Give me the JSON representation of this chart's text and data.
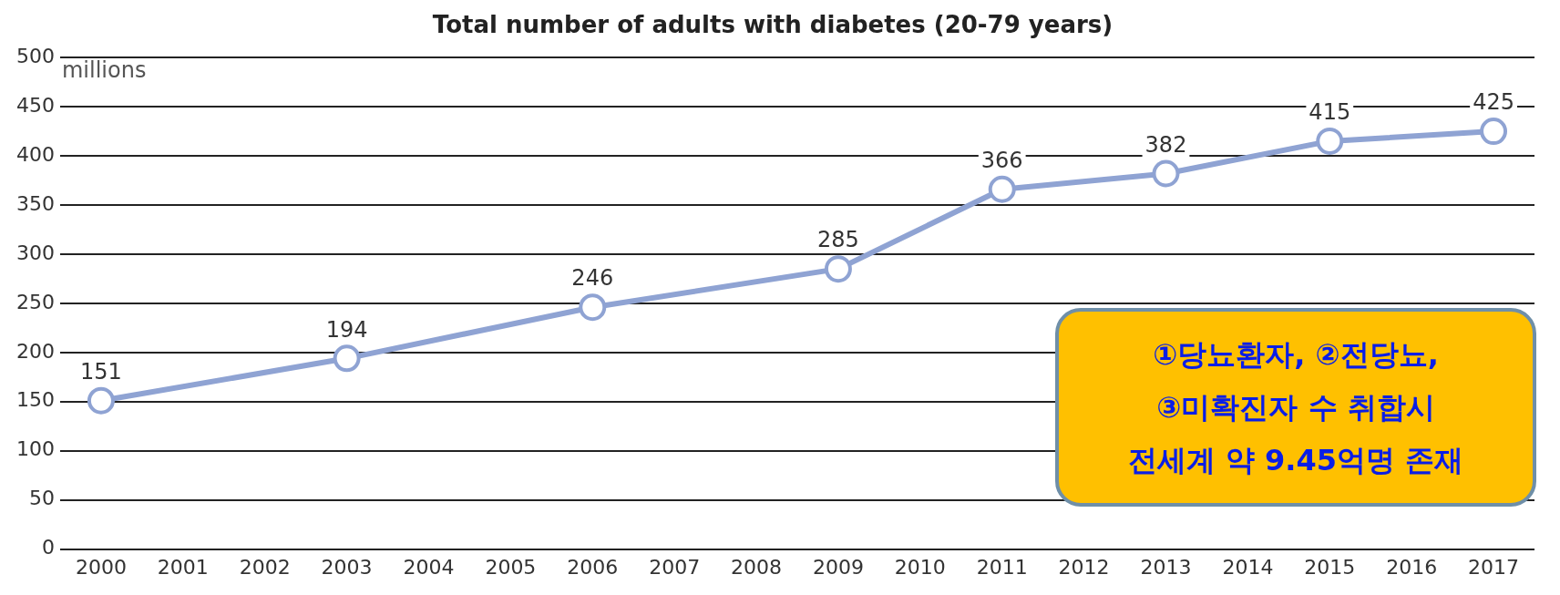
{
  "chart_data": {
    "type": "line",
    "title": "Total number of adults with diabetes (20-79 years)",
    "ylabel": "millions",
    "categories": [
      "2000",
      "2001",
      "2002",
      "2003",
      "2004",
      "2005",
      "2006",
      "2007",
      "2008",
      "2009",
      "2010",
      "2011",
      "2012",
      "2013",
      "2014",
      "2015",
      "2016",
      "2017"
    ],
    "series": [
      {
        "color": "#8fa3d3",
        "values": [
          151,
          null,
          null,
          194,
          null,
          null,
          246,
          null,
          null,
          285,
          null,
          366,
          null,
          382,
          null,
          415,
          null,
          425
        ]
      }
    ],
    "ylim": [
      0,
      500
    ],
    "yticks": [
      0,
      50,
      100,
      150,
      200,
      250,
      300,
      350,
      400,
      450,
      500
    ],
    "grid": "y",
    "marker": "circle",
    "line_style": "solid",
    "data_labels": true,
    "legend": false,
    "annotations": [
      "①당뇨환자, ②전당뇨,\n③미확진자 수 취합시\n전세계 약 9.45억명 존재"
    ]
  }
}
